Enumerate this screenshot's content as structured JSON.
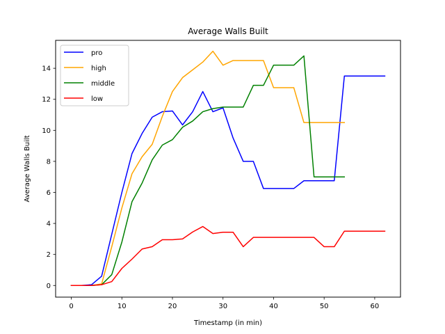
{
  "chart_data": {
    "type": "line",
    "title": "Average Walls Built",
    "xlabel": "Timestamp (in min)",
    "ylabel": "Average Walls Built",
    "xlim": [
      -3.1,
      65.1
    ],
    "ylim": [
      -0.75,
      15.8
    ],
    "xticks": [
      0,
      10,
      20,
      30,
      40,
      50,
      60
    ],
    "yticks": [
      0,
      2,
      4,
      6,
      8,
      10,
      12,
      14
    ],
    "grid": false,
    "legend_position": "top-left",
    "series": [
      {
        "name": "pro",
        "color": "#0000ff",
        "x": [
          0,
          2,
          4,
          6,
          8,
          10,
          12,
          14,
          16,
          18,
          20,
          22,
          24,
          26,
          28,
          30,
          32,
          34,
          36,
          38,
          40,
          42,
          44,
          46,
          48,
          50,
          52,
          54,
          56,
          58,
          60,
          62
        ],
        "y": [
          0,
          0,
          0.05,
          0.6,
          3.3,
          6.0,
          8.5,
          9.8,
          10.85,
          11.2,
          11.25,
          10.35,
          11.2,
          12.5,
          11.2,
          11.45,
          9.5,
          8.0,
          8.0,
          6.25,
          6.25,
          6.25,
          6.25,
          6.75,
          6.75,
          6.75,
          6.75,
          13.5,
          13.5,
          13.5,
          13.5,
          13.5
        ]
      },
      {
        "name": "high",
        "color": "#ffa500",
        "x": [
          0,
          2,
          4,
          6,
          8,
          10,
          12,
          14,
          16,
          18,
          20,
          22,
          24,
          26,
          28,
          30,
          32,
          34,
          36,
          38,
          40,
          42,
          44,
          46,
          48,
          50,
          52,
          54
        ],
        "y": [
          0,
          0,
          0,
          0.1,
          2.5,
          5.0,
          7.2,
          8.3,
          9.1,
          10.9,
          12.5,
          13.4,
          13.9,
          14.4,
          15.1,
          14.2,
          14.5,
          14.5,
          14.5,
          14.5,
          12.75,
          12.75,
          12.75,
          10.5,
          10.5,
          10.5,
          10.5,
          10.5
        ]
      },
      {
        "name": "middle",
        "color": "#008000",
        "x": [
          0,
          2,
          4,
          6,
          8,
          10,
          12,
          14,
          16,
          18,
          20,
          22,
          24,
          26,
          28,
          30,
          32,
          34,
          36,
          38,
          40,
          42,
          44,
          46,
          48,
          50,
          52,
          54
        ],
        "y": [
          0,
          0,
          0,
          0.05,
          0.7,
          2.8,
          5.4,
          6.6,
          8.1,
          9.05,
          9.4,
          10.2,
          10.6,
          11.2,
          11.4,
          11.5,
          11.5,
          11.5,
          12.9,
          12.9,
          14.2,
          14.2,
          14.2,
          14.8,
          7.0,
          7.0,
          7.0,
          7.0
        ]
      },
      {
        "name": "low",
        "color": "#ff0000",
        "x": [
          0,
          2,
          4,
          6,
          8,
          10,
          12,
          14,
          16,
          18,
          20,
          22,
          24,
          26,
          28,
          30,
          32,
          34,
          36,
          38,
          40,
          42,
          44,
          46,
          48,
          50,
          52,
          54,
          56,
          58,
          60,
          62
        ],
        "y": [
          0,
          0,
          0,
          0.05,
          0.25,
          1.1,
          1.7,
          2.35,
          2.5,
          2.95,
          2.95,
          3.0,
          3.45,
          3.8,
          3.35,
          3.43,
          3.43,
          2.5,
          3.1,
          3.1,
          3.1,
          3.1,
          3.1,
          3.1,
          3.1,
          2.5,
          2.5,
          3.5,
          3.5,
          3.5,
          3.5,
          3.5
        ]
      }
    ]
  }
}
